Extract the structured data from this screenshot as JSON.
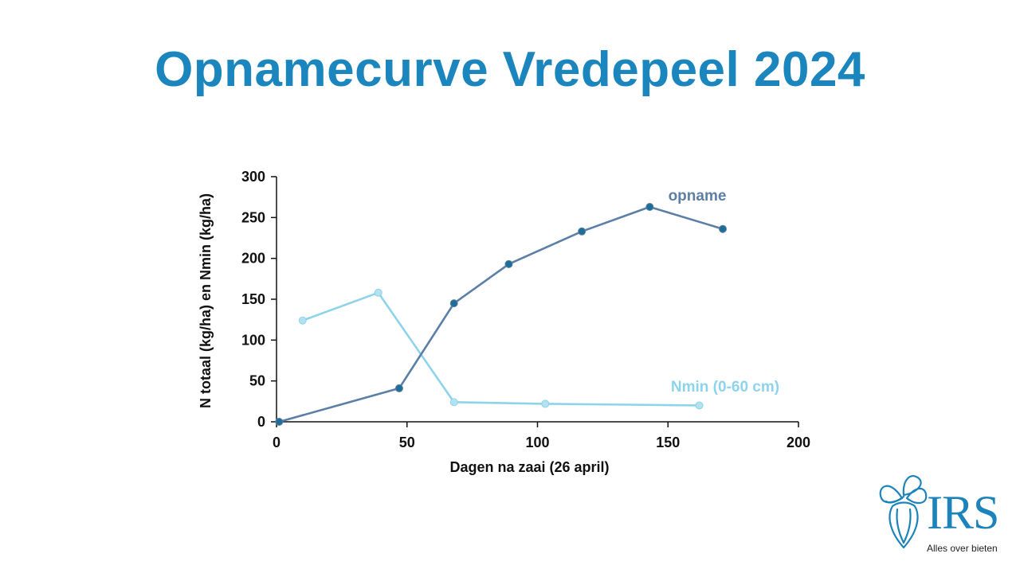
{
  "slide": {
    "title": "Opnamecurve Vredepeel 2024"
  },
  "logo": {
    "text": "IRS",
    "tagline": "Alles over bieten",
    "color": "#1d83bb"
  },
  "chart_data": {
    "type": "line",
    "title": "",
    "xlabel": "Dagen na zaai (26 april)",
    "ylabel": "N totaal (kg/ha) en Nmin (kg/ha)",
    "xlim": [
      0,
      200
    ],
    "ylim": [
      0,
      300
    ],
    "xticks": [
      0,
      50,
      100,
      150,
      200
    ],
    "yticks": [
      0,
      50,
      100,
      150,
      200,
      250,
      300
    ],
    "grid": false,
    "legend": "inline labels",
    "series": [
      {
        "name": "opname",
        "color": "#5b7fa6",
        "marker_color": "#1f6e95",
        "points": [
          {
            "x": 1,
            "y": 0
          },
          {
            "x": 47,
            "y": 41
          },
          {
            "x": 68,
            "y": 145
          },
          {
            "x": 89,
            "y": 193
          },
          {
            "x": 117,
            "y": 233
          },
          {
            "x": 143,
            "y": 263
          },
          {
            "x": 171,
            "y": 236
          }
        ]
      },
      {
        "name": "Nmin (0-60 cm)",
        "color": "#8dd4ea",
        "marker_color": "#b3e1ef",
        "points": [
          {
            "x": 10,
            "y": 124
          },
          {
            "x": 39,
            "y": 158
          },
          {
            "x": 68,
            "y": 24
          },
          {
            "x": 103,
            "y": 22
          },
          {
            "x": 162,
            "y": 20
          }
        ]
      }
    ]
  }
}
